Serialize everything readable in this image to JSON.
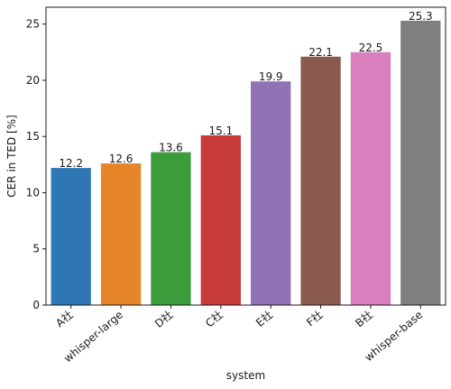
{
  "chart_data": {
    "type": "bar",
    "categories": [
      "A社",
      "whisper-large",
      "D社",
      "C社",
      "E社",
      "F社",
      "B社",
      "whisper-base"
    ],
    "values": [
      12.2,
      12.6,
      13.6,
      15.1,
      19.9,
      22.1,
      22.5,
      25.3
    ],
    "value_labels": [
      "12.2",
      "12.6",
      "13.6",
      "15.1",
      "19.9",
      "22.1",
      "22.5",
      "25.3"
    ],
    "colors": [
      "#2f77b4",
      "#e6842a",
      "#3c9c3c",
      "#c73b3b",
      "#9172b5",
      "#8a5a4f",
      "#d97fbe",
      "#7f7f7f"
    ],
    "title": "",
    "xlabel": "system",
    "ylabel": "CER in TED [%]",
    "ylim": [
      0,
      26.5
    ],
    "yticks": [
      0,
      5,
      10,
      15,
      20,
      25
    ],
    "grid": false,
    "legend": false
  }
}
